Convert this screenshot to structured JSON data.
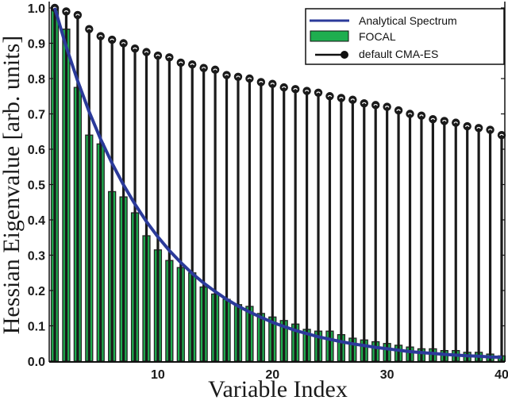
{
  "chart_data": {
    "type": "bar",
    "title": "",
    "xlabel": "Variable Index",
    "ylabel": "Hessian Eigenvalue [arb. units]",
    "xlim": [
      0.6,
      40.2
    ],
    "ylim": [
      0.0,
      1.0
    ],
    "x_ticks": [
      10,
      20,
      30,
      40
    ],
    "y_ticks": [
      0.0,
      0.1,
      0.2,
      0.3,
      0.4,
      0.5,
      0.6,
      0.7,
      0.8,
      0.9,
      1.0
    ],
    "y_tick_labels": [
      "0.0",
      "0.1",
      "0.2",
      "0.3",
      "0.4",
      "0.5",
      "0.6",
      "0.7",
      "0.8",
      "0.9",
      "1.0"
    ],
    "x_tick_labels": [
      "10",
      "20",
      "30",
      "40"
    ],
    "grid": false,
    "legend_position": "upper right",
    "x": [
      1,
      2,
      3,
      4,
      5,
      6,
      7,
      8,
      9,
      10,
      11,
      12,
      13,
      14,
      15,
      16,
      17,
      18,
      19,
      20,
      21,
      22,
      23,
      24,
      25,
      26,
      27,
      28,
      29,
      30,
      31,
      32,
      33,
      34,
      35,
      36,
      37,
      38,
      39,
      40
    ],
    "series": [
      {
        "name": "Analytical Spectrum",
        "kind": "line",
        "color": "#2b3a9a",
        "values": [
          1.0,
          0.89,
          0.793,
          0.706,
          0.629,
          0.56,
          0.499,
          0.444,
          0.395,
          0.352,
          0.313,
          0.279,
          0.248,
          0.221,
          0.197,
          0.175,
          0.156,
          0.139,
          0.124,
          0.11,
          0.098,
          0.087,
          0.078,
          0.069,
          0.062,
          0.055,
          0.049,
          0.044,
          0.039,
          0.035,
          0.031,
          0.027,
          0.024,
          0.022,
          0.019,
          0.017,
          0.015,
          0.014,
          0.012,
          0.011
        ]
      },
      {
        "name": "FOCAL",
        "kind": "bar",
        "color": "#1fae4f",
        "values": [
          1.0,
          0.94,
          0.775,
          0.64,
          0.615,
          0.48,
          0.465,
          0.42,
          0.355,
          0.315,
          0.285,
          0.265,
          0.25,
          0.21,
          0.19,
          0.175,
          0.16,
          0.155,
          0.135,
          0.125,
          0.115,
          0.105,
          0.09,
          0.085,
          0.085,
          0.075,
          0.065,
          0.06,
          0.055,
          0.05,
          0.045,
          0.04,
          0.035,
          0.035,
          0.03,
          0.03,
          0.025,
          0.025,
          0.02,
          0.015
        ]
      },
      {
        "name": "default CMA-ES",
        "kind": "stem",
        "color": "#1a1a1a",
        "values": [
          1.0,
          0.99,
          0.98,
          0.94,
          0.92,
          0.91,
          0.9,
          0.885,
          0.875,
          0.865,
          0.86,
          0.845,
          0.84,
          0.83,
          0.825,
          0.81,
          0.805,
          0.8,
          0.79,
          0.785,
          0.775,
          0.77,
          0.765,
          0.76,
          0.75,
          0.745,
          0.74,
          0.73,
          0.725,
          0.72,
          0.71,
          0.7,
          0.695,
          0.685,
          0.68,
          0.675,
          0.665,
          0.66,
          0.655,
          0.64
        ]
      }
    ]
  },
  "legend": {
    "items": [
      {
        "label": "Analytical Spectrum",
        "symbol": "line"
      },
      {
        "label": "FOCAL",
        "symbol": "bar"
      },
      {
        "label": "default CMA-ES",
        "symbol": "stem"
      }
    ]
  },
  "axes": {
    "xlabel": "Variable Index",
    "ylabel": "Hessian Eigenvalue [arb. units]"
  }
}
